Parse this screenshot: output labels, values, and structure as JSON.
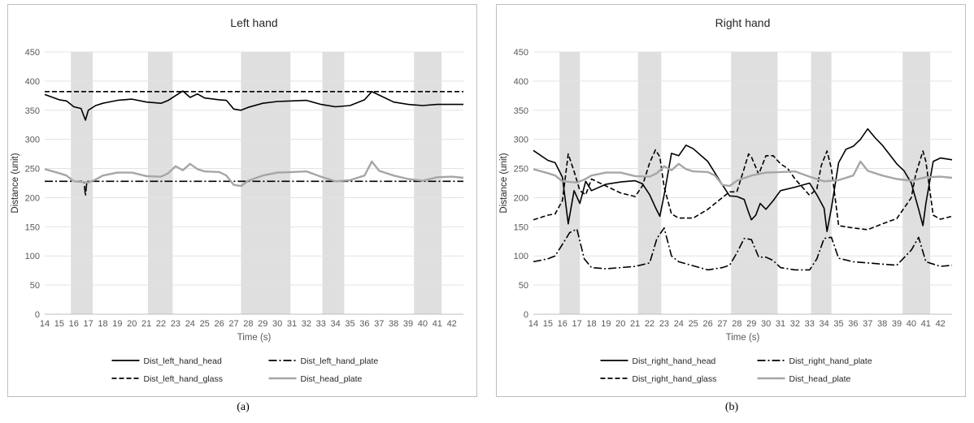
{
  "captions": {
    "a": "(a)",
    "b": "(b)"
  },
  "chart_data": [
    {
      "type": "line",
      "title": "Left hand",
      "xlabel": "Time (s)",
      "ylabel": "Distance (unit)",
      "xlim": [
        14,
        42.8
      ],
      "ylim": [
        0,
        450
      ],
      "yticks": [
        0,
        50,
        100,
        150,
        200,
        250,
        300,
        350,
        400,
        450
      ],
      "xticks": [
        "14",
        "15",
        "16",
        "17",
        "18",
        "19",
        "20",
        "21",
        "22",
        "23",
        "24",
        "25",
        "26",
        "27",
        "28",
        "29",
        "30",
        "31",
        "32",
        "33",
        "34",
        "35",
        "36",
        "37",
        "38",
        "39",
        "40",
        "41",
        "42"
      ],
      "grid": "horizontal",
      "legend": "bottom",
      "shaded_intervals": [
        [
          15.8,
          17.3
        ],
        [
          21.1,
          22.8
        ],
        [
          27.5,
          30.9
        ],
        [
          33.1,
          34.6
        ],
        [
          39.4,
          41.3
        ]
      ],
      "series": [
        {
          "name": "Dist_left_hand_head",
          "style": "solid",
          "color": "#000000",
          "x": [
            14,
            15,
            15.5,
            16,
            16.5,
            16.8,
            17,
            17.5,
            18,
            19,
            20,
            21,
            22,
            22.5,
            23,
            23.5,
            24,
            24.5,
            25,
            26,
            26.5,
            27,
            27.5,
            28,
            29,
            30,
            31,
            32,
            33,
            34,
            35,
            36,
            36.5,
            37,
            38,
            39,
            40,
            41,
            42,
            42.8
          ],
          "y": [
            377,
            368,
            366,
            356,
            353,
            333,
            350,
            358,
            362,
            367,
            369,
            364,
            362,
            367,
            375,
            383,
            372,
            378,
            371,
            368,
            367,
            352,
            350,
            355,
            362,
            365,
            366,
            367,
            360,
            356,
            358,
            368,
            382,
            376,
            364,
            360,
            358,
            360,
            360,
            360
          ]
        },
        {
          "name": "Dist_left_hand_plate",
          "style": "dashdot",
          "color": "#000000",
          "x": [
            14,
            16.7,
            16.8,
            16.9,
            17,
            42.8
          ],
          "y": [
            228,
            228,
            203,
            228,
            228,
            228
          ]
        },
        {
          "name": "Dist_left_hand_glass",
          "style": "dashed",
          "color": "#000000",
          "x": [
            14,
            42.8
          ],
          "y": [
            382,
            382
          ]
        },
        {
          "name": "Dist_head_plate",
          "style": "solid",
          "color": "#a6a6a6",
          "x": [
            14,
            15,
            15.5,
            16,
            17,
            17.5,
            18,
            19,
            20,
            21,
            22,
            22.5,
            23,
            23.5,
            24,
            24.5,
            25,
            26,
            26.5,
            27,
            27.5,
            28,
            29,
            30,
            31,
            32,
            33,
            34,
            35,
            36,
            36.5,
            37,
            38,
            39,
            40,
            41,
            42,
            42.8
          ],
          "y": [
            249,
            242,
            238,
            228,
            226,
            231,
            238,
            243,
            243,
            237,
            236,
            242,
            254,
            247,
            258,
            249,
            245,
            244,
            238,
            222,
            220,
            229,
            238,
            243,
            244,
            245,
            236,
            228,
            230,
            238,
            262,
            246,
            238,
            232,
            229,
            235,
            236,
            234
          ]
        }
      ]
    },
    {
      "type": "line",
      "title": "Right hand",
      "xlabel": "Time (s)",
      "ylabel": "Distance (unit)",
      "xlim": [
        14,
        42.8
      ],
      "ylim": [
        0,
        450
      ],
      "yticks": [
        0,
        50,
        100,
        150,
        200,
        250,
        300,
        350,
        400,
        450
      ],
      "xticks": [
        "14",
        "15",
        "16",
        "17",
        "18",
        "19",
        "20",
        "21",
        "22",
        "23",
        "24",
        "25",
        "26",
        "27",
        "28",
        "29",
        "30",
        "31",
        "32",
        "33",
        "34",
        "35",
        "36",
        "37",
        "38",
        "39",
        "40",
        "41",
        "42"
      ],
      "grid": "horizontal",
      "legend": "bottom",
      "shaded_intervals": [
        [
          15.8,
          17.2
        ],
        [
          21.2,
          22.8
        ],
        [
          27.6,
          30.8
        ],
        [
          33.1,
          34.5
        ],
        [
          39.4,
          41.3
        ]
      ],
      "series": [
        {
          "name": "Dist_right_hand_head",
          "style": "solid",
          "color": "#000000",
          "x": [
            14,
            15,
            15.5,
            16,
            16.4,
            16.8,
            17.2,
            17.6,
            18,
            19,
            20,
            21,
            21.5,
            22,
            22.4,
            22.7,
            23,
            23.5,
            24,
            24.5,
            25,
            26,
            27,
            27.5,
            28,
            28.5,
            28.8,
            29,
            29.3,
            29.6,
            30,
            30.5,
            31,
            32,
            33,
            33.5,
            34,
            34.2,
            34.5,
            35,
            35.5,
            36,
            36.5,
            37,
            37.5,
            38,
            39,
            39.5,
            40,
            40.5,
            40.8,
            41,
            41.5,
            42,
            42.8
          ],
          "y": [
            281,
            264,
            260,
            235,
            155,
            212,
            190,
            228,
            212,
            223,
            227,
            229,
            224,
            205,
            183,
            168,
            205,
            276,
            272,
            290,
            284,
            262,
            222,
            203,
            202,
            197,
            175,
            162,
            170,
            190,
            180,
            195,
            212,
            218,
            225,
            205,
            182,
            142,
            182,
            260,
            283,
            288,
            300,
            318,
            303,
            290,
            258,
            246,
            225,
            180,
            152,
            190,
            262,
            268,
            265
          ]
        },
        {
          "name": "Dist_right_hand_plate",
          "style": "dashdot",
          "color": "#000000",
          "x": [
            14,
            15,
            15.5,
            16,
            16.5,
            17,
            17.5,
            18,
            19,
            20,
            21,
            22,
            22.5,
            23,
            23.5,
            24,
            25,
            26,
            27,
            27.5,
            28,
            28.5,
            29,
            29.5,
            30,
            30.5,
            31,
            32,
            33,
            33.5,
            34,
            34.5,
            35,
            36,
            37,
            38,
            39,
            40,
            40.5,
            41,
            42,
            42.8
          ],
          "y": [
            90,
            95,
            100,
            120,
            140,
            146,
            95,
            80,
            78,
            80,
            82,
            88,
            130,
            148,
            100,
            90,
            83,
            76,
            80,
            84,
            105,
            130,
            128,
            98,
            98,
            92,
            80,
            76,
            76,
            95,
            130,
            132,
            96,
            90,
            88,
            86,
            84,
            110,
            132,
            90,
            82,
            84
          ]
        },
        {
          "name": "Dist_right_hand_glass",
          "style": "dashed",
          "color": "#000000",
          "x": [
            14,
            15,
            15.5,
            16,
            16.4,
            16.8,
            17.2,
            17.6,
            18,
            19,
            20,
            21,
            21.5,
            22,
            22.4,
            22.7,
            23,
            23.5,
            24,
            25,
            26,
            27,
            27.5,
            28,
            28.5,
            28.8,
            29,
            29.5,
            30,
            30.5,
            31,
            31.5,
            32,
            33,
            33.5,
            33.8,
            34.2,
            34.5,
            35,
            36,
            37,
            38,
            39,
            40,
            40.3,
            40.8,
            41,
            41.5,
            42,
            42.8
          ],
          "y": [
            162,
            170,
            172,
            195,
            275,
            245,
            212,
            205,
            232,
            220,
            208,
            202,
            220,
            260,
            282,
            270,
            218,
            172,
            165,
            165,
            180,
            200,
            210,
            210,
            250,
            275,
            270,
            240,
            272,
            272,
            258,
            250,
            232,
            204,
            215,
            255,
            280,
            250,
            152,
            148,
            145,
            155,
            164,
            200,
            240,
            280,
            262,
            170,
            163,
            168
          ]
        },
        {
          "name": "Dist_head_plate",
          "style": "solid",
          "color": "#a6a6a6",
          "x": [
            14,
            15,
            15.5,
            16,
            17,
            17.5,
            18,
            19,
            20,
            21,
            22,
            22.5,
            23,
            23.5,
            24,
            24.5,
            25,
            26,
            26.5,
            27,
            27.5,
            28,
            29,
            30,
            31,
            32,
            33,
            34,
            35,
            36,
            36.5,
            37,
            38,
            39,
            40,
            41,
            42,
            42.8
          ],
          "y": [
            249,
            242,
            238,
            228,
            226,
            231,
            238,
            243,
            243,
            237,
            236,
            242,
            254,
            247,
            258,
            249,
            245,
            244,
            238,
            222,
            220,
            229,
            238,
            243,
            244,
            245,
            236,
            228,
            230,
            238,
            262,
            246,
            238,
            232,
            229,
            235,
            236,
            234
          ]
        }
      ]
    }
  ]
}
